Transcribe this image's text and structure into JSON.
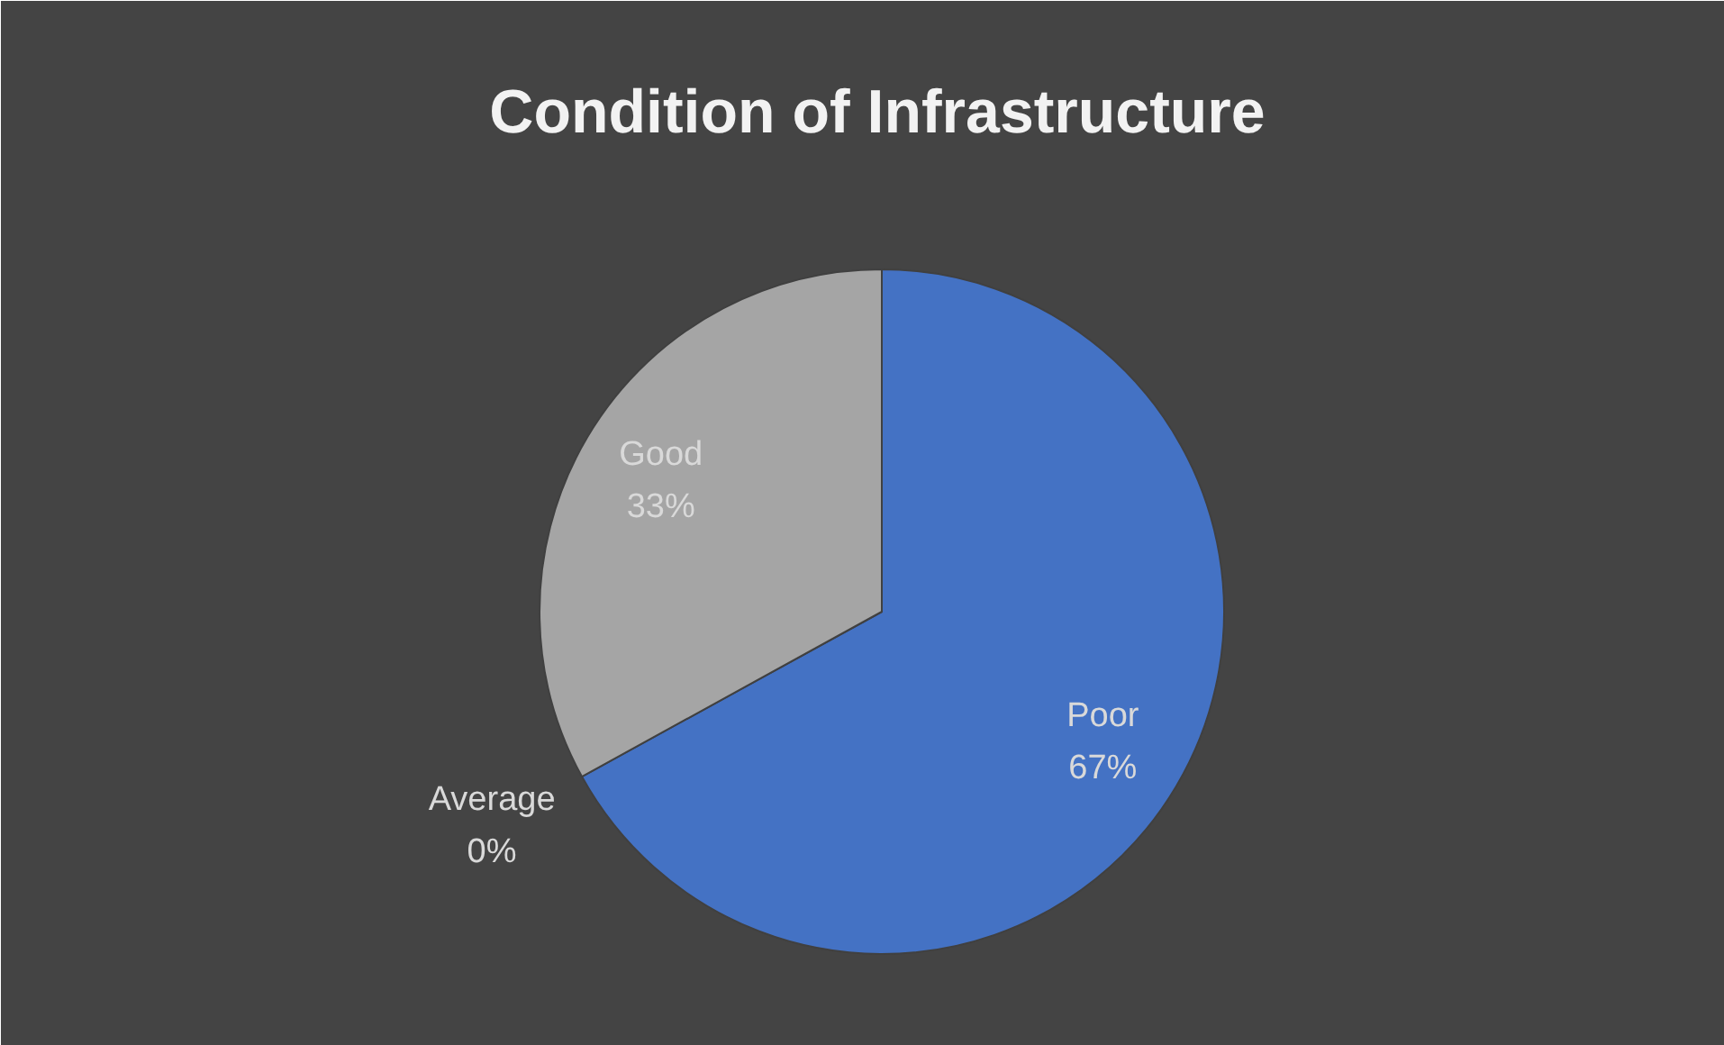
{
  "chart_data": {
    "type": "pie",
    "title": "Condition of Infrastructure",
    "categories": [
      "Poor",
      "Average",
      "Good"
    ],
    "values": [
      67,
      0,
      33
    ],
    "colors": [
      "#4472c4",
      "#ed7d31",
      "#a5a5a5"
    ],
    "value_labels": [
      "67%",
      "0%",
      "33%"
    ]
  }
}
